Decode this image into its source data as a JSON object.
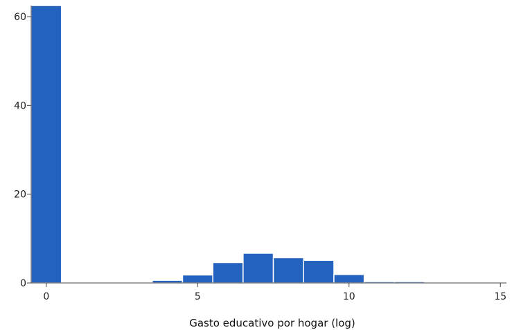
{
  "chart_data": {
    "type": "bar",
    "xlabel": "Gasto educativo por hogar (log)",
    "ylabel": "",
    "xlim": [
      -0.5,
      15.2
    ],
    "ylim": [
      0,
      62.5
    ],
    "xticks": [
      "0",
      "5",
      "10",
      "15"
    ],
    "xtick_values": [
      0,
      5,
      10,
      15
    ],
    "yticks": [
      "0",
      "20",
      "40",
      "60"
    ],
    "ytick_values": [
      0,
      20,
      40,
      60
    ],
    "grid": false,
    "bin_width": 1,
    "bins": [
      {
        "start": -0.5,
        "end": 0.5,
        "value": 62.5
      },
      {
        "start": 3.5,
        "end": 4.5,
        "value": 0.6
      },
      {
        "start": 4.5,
        "end": 5.5,
        "value": 1.8
      },
      {
        "start": 5.5,
        "end": 6.5,
        "value": 4.6
      },
      {
        "start": 6.5,
        "end": 7.5,
        "value": 6.7
      },
      {
        "start": 7.5,
        "end": 8.5,
        "value": 5.7
      },
      {
        "start": 8.5,
        "end": 9.5,
        "value": 5.1
      },
      {
        "start": 9.5,
        "end": 10.5,
        "value": 1.9
      },
      {
        "start": 10.5,
        "end": 11.5,
        "value": 0.3
      },
      {
        "start": 11.5,
        "end": 12.5,
        "value": 0.3
      }
    ],
    "colors": {
      "bar": "#2462BF",
      "bar_edge": "#ffffff"
    }
  }
}
